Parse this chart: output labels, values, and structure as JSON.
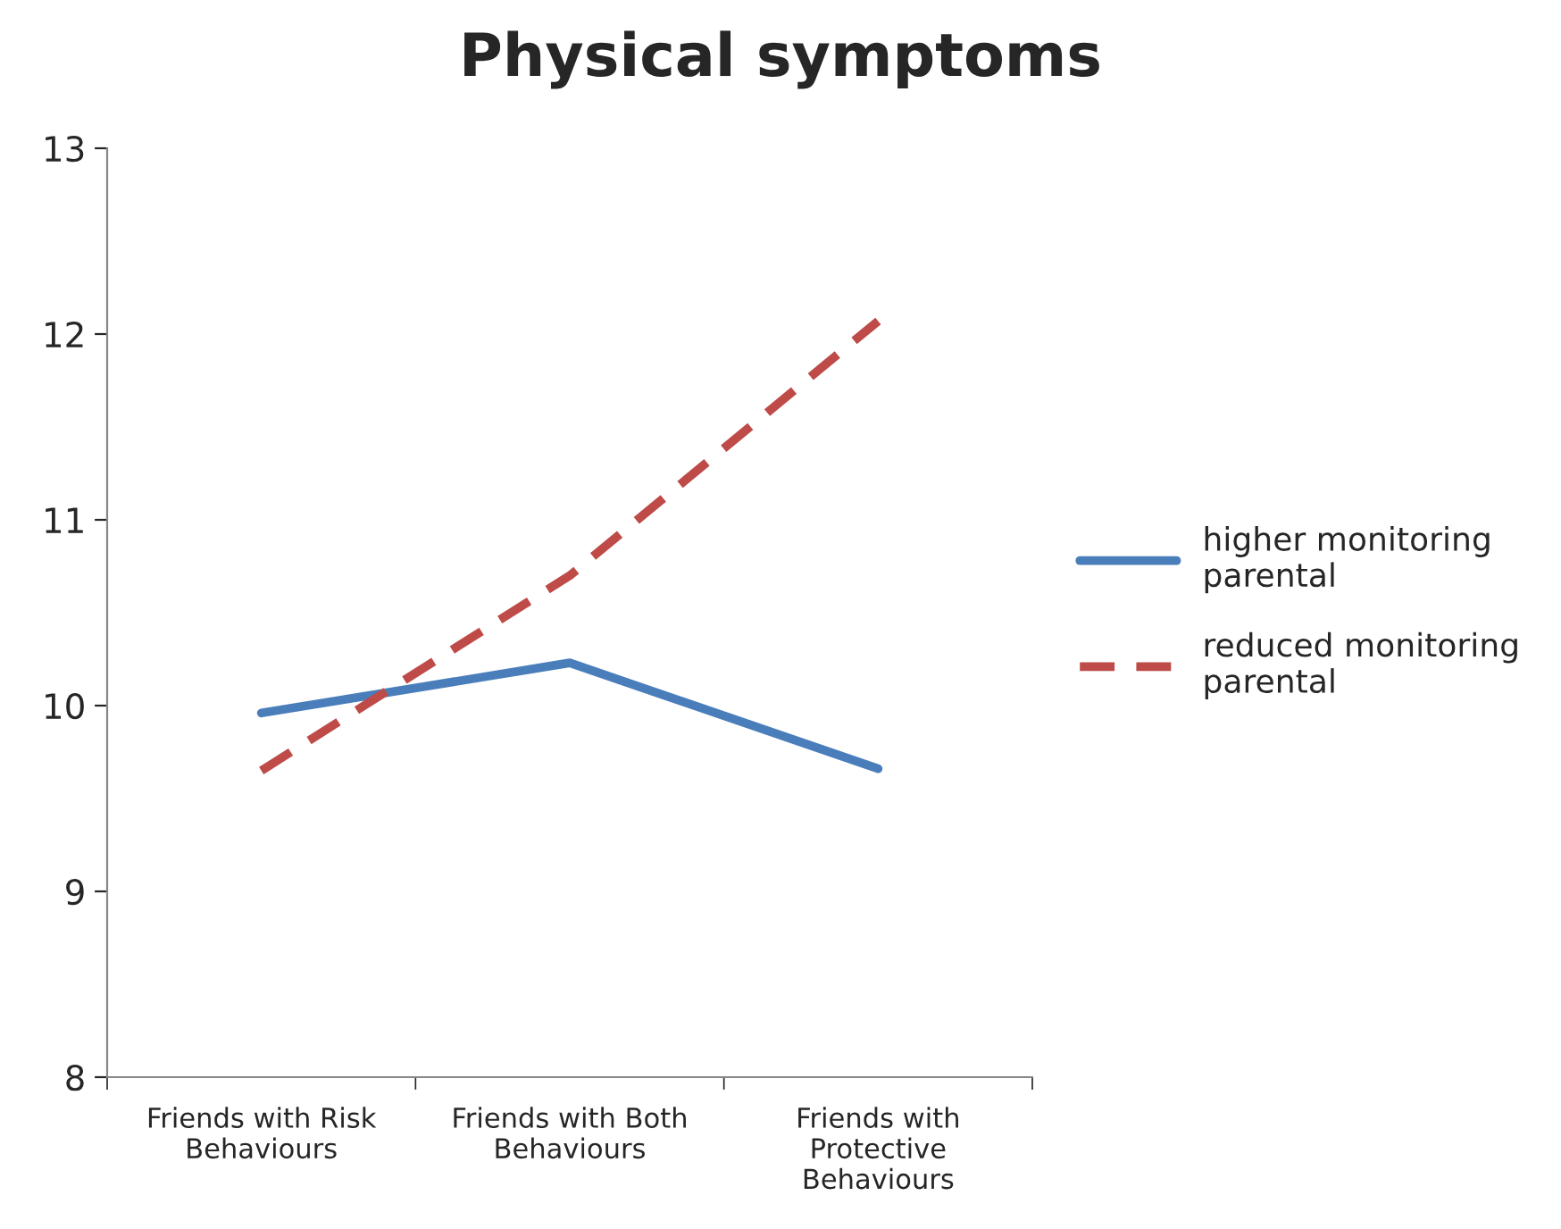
{
  "chart_data": {
    "type": "line",
    "title": "Physical symptoms",
    "categories": [
      "Friends with Risk\nBehaviours",
      "Friends with Both\nBehaviours",
      "Friends with\nProtective\nBehaviours"
    ],
    "series": [
      {
        "name": "higher monitoring\nparental",
        "color": "#4a7ebb",
        "line_style": "solid",
        "values": [
          9.96,
          10.23,
          9.66
        ]
      },
      {
        "name": "reduced monitoring\nparental",
        "color": "#be4b48",
        "line_style": "dashed",
        "values": [
          9.65,
          10.7,
          12.07
        ]
      }
    ],
    "ylim": [
      8,
      13
    ],
    "yticks": [
      8,
      9,
      10,
      11,
      12,
      13
    ],
    "grid": false,
    "legend": "right",
    "marker": "none"
  }
}
